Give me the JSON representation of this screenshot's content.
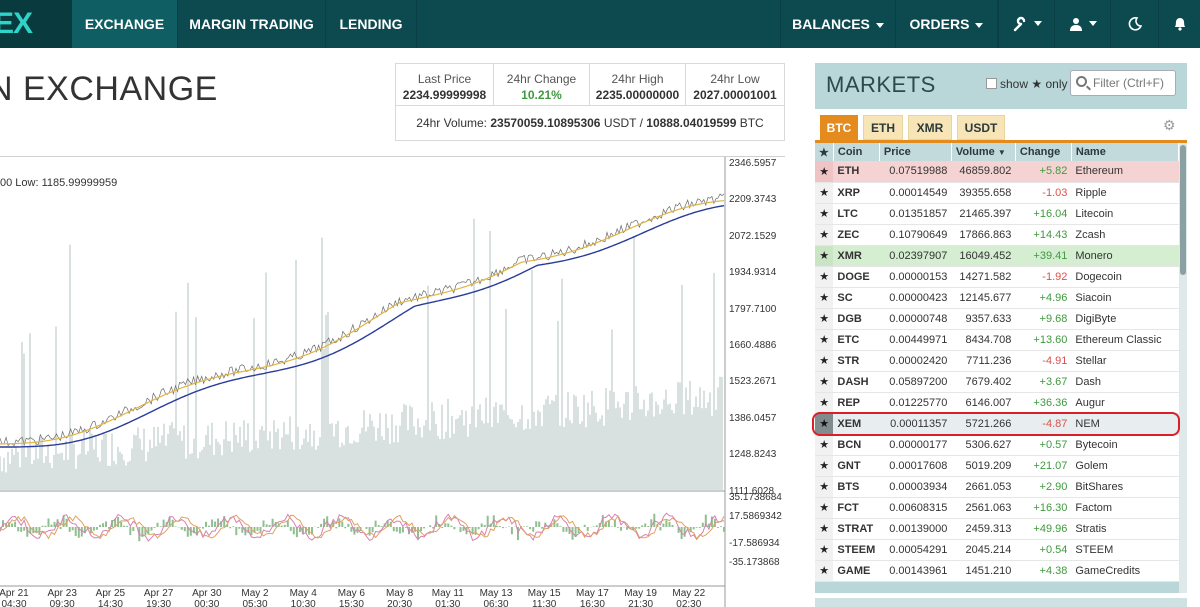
{
  "nav": {
    "logo": "EX",
    "items": [
      {
        "label": "EXCHANGE"
      },
      {
        "label": "MARGIN TRADING"
      },
      {
        "label": "LENDING"
      },
      {
        "label": "BALANCES"
      },
      {
        "label": "ORDERS"
      }
    ]
  },
  "page_title": "N EXCHANGE",
  "stats": {
    "last_price_label": "Last Price",
    "last_price": "2234.99999998",
    "change_label": "24hr Change",
    "change": "10.21%",
    "high_label": "24hr High",
    "high": "2235.00000000",
    "low_label": "24hr Low",
    "low": "2027.00001001",
    "volume_prefix": "24hr Volume:",
    "volume_usdt": "23570059.10895306",
    "volume_usdt_unit": "USDT /",
    "volume_btc": "10888.04019599",
    "volume_btc_unit": "BTC"
  },
  "chart": {
    "hl_label": "00  Low: 1185.99999959",
    "price_ticks": [
      "2346.5957",
      "2209.3743",
      "2072.1529",
      "1934.9314",
      "1797.7100",
      "1660.4886",
      "1523.2671",
      "1386.0457",
      "1248.8243",
      "1111.6028"
    ],
    "osc_ticks": [
      "35.1738684",
      "17.5869342",
      "-17.586934",
      "-35.173868"
    ],
    "date_ticks": [
      {
        "d": "Apr 21",
        "t": "04:30"
      },
      {
        "d": "Apr 23",
        "t": "09:30"
      },
      {
        "d": "Apr 25",
        "t": "14:30"
      },
      {
        "d": "Apr 27",
        "t": "19:30"
      },
      {
        "d": "Apr 30",
        "t": "00:30"
      },
      {
        "d": "May 2",
        "t": "05:30"
      },
      {
        "d": "May 4",
        "t": "10:30"
      },
      {
        "d": "May 6",
        "t": "15:30"
      },
      {
        "d": "May 8",
        "t": "20:30"
      },
      {
        "d": "May 11",
        "t": "01:30"
      },
      {
        "d": "May 13",
        "t": "06:30"
      },
      {
        "d": "May 15",
        "t": "11:30"
      },
      {
        "d": "May 17",
        "t": "16:30"
      },
      {
        "d": "May 19",
        "t": "21:30"
      },
      {
        "d": "May 22",
        "t": "02:30"
      }
    ]
  },
  "markets": {
    "title": "MARKETS",
    "show_label": "show",
    "only_label": "only",
    "filter_placeholder": "Filter (Ctrl+F)",
    "tabs": [
      "BTC",
      "ETH",
      "XMR",
      "USDT"
    ],
    "columns": [
      "Coin",
      "Price",
      "Volume",
      "Change",
      "Name"
    ],
    "rows": [
      {
        "coin": "ETH",
        "price": "0.07519988",
        "volume": "46859.802",
        "change": "+5.82",
        "name": "Ethereum"
      },
      {
        "coin": "XRP",
        "price": "0.00014549",
        "volume": "39355.658",
        "change": "-1.03",
        "name": "Ripple"
      },
      {
        "coin": "LTC",
        "price": "0.01351857",
        "volume": "21465.397",
        "change": "+16.04",
        "name": "Litecoin"
      },
      {
        "coin": "ZEC",
        "price": "0.10790649",
        "volume": "17866.863",
        "change": "+14.43",
        "name": "Zcash"
      },
      {
        "coin": "XMR",
        "price": "0.02397907",
        "volume": "16049.452",
        "change": "+39.41",
        "name": "Monero"
      },
      {
        "coin": "DOGE",
        "price": "0.00000153",
        "volume": "14271.582",
        "change": "-1.92",
        "name": "Dogecoin"
      },
      {
        "coin": "SC",
        "price": "0.00000423",
        "volume": "12145.677",
        "change": "+4.96",
        "name": "Siacoin"
      },
      {
        "coin": "DGB",
        "price": "0.00000748",
        "volume": "9357.633",
        "change": "+9.68",
        "name": "DigiByte"
      },
      {
        "coin": "ETC",
        "price": "0.00449971",
        "volume": "8434.708",
        "change": "+13.60",
        "name": "Ethereum Classic"
      },
      {
        "coin": "STR",
        "price": "0.00002420",
        "volume": "7711.236",
        "change": "-4.91",
        "name": "Stellar"
      },
      {
        "coin": "DASH",
        "price": "0.05897200",
        "volume": "7679.402",
        "change": "+3.67",
        "name": "Dash"
      },
      {
        "coin": "REP",
        "price": "0.01225770",
        "volume": "6146.007",
        "change": "+36.36",
        "name": "Augur"
      },
      {
        "coin": "XEM",
        "price": "0.00011357",
        "volume": "5721.266",
        "change": "-4.87",
        "name": "NEM"
      },
      {
        "coin": "BCN",
        "price": "0.00000177",
        "volume": "5306.627",
        "change": "+0.57",
        "name": "Bytecoin"
      },
      {
        "coin": "GNT",
        "price": "0.00017608",
        "volume": "5019.209",
        "change": "+21.07",
        "name": "Golem"
      },
      {
        "coin": "BTS",
        "price": "0.00003934",
        "volume": "2661.053",
        "change": "+2.90",
        "name": "BitShares"
      },
      {
        "coin": "FCT",
        "price": "0.00608315",
        "volume": "2561.063",
        "change": "+16.30",
        "name": "Factom"
      },
      {
        "coin": "STRAT",
        "price": "0.00139000",
        "volume": "2459.313",
        "change": "+49.96",
        "name": "Stratis"
      },
      {
        "coin": "STEEM",
        "price": "0.00054291",
        "volume": "2045.214",
        "change": "+0.54",
        "name": "STEEM"
      },
      {
        "coin": "GAME",
        "price": "0.00143961",
        "volume": "1451.210",
        "change": "+4.38",
        "name": "GameCredits"
      }
    ]
  },
  "colors": {
    "nav_bg": "#0c4a4f",
    "accent": "#e48b1e",
    "positive": "#3f9a3f",
    "negative": "#d9534f",
    "highlight_ring": "#d8202a"
  }
}
